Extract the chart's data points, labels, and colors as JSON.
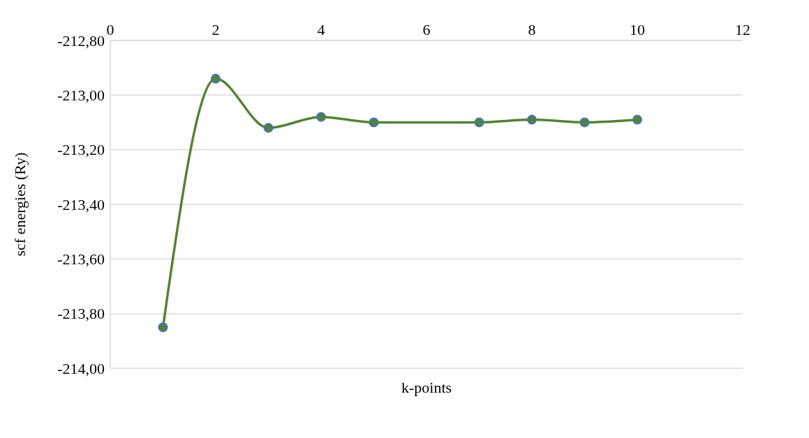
{
  "chart_data": {
    "type": "line",
    "xlabel": "k-points",
    "ylabel": "scf energies (Ry)",
    "x": [
      1,
      2,
      3,
      4,
      5,
      7,
      8,
      9,
      10
    ],
    "series": [
      {
        "color": "#548235",
        "values": [
          -213.85,
          -212.94,
          -213.12,
          -213.08,
          -213.1,
          -213.1,
          -213.09,
          -213.1,
          -213.09
        ]
      }
    ],
    "xlim": [
      0,
      12
    ],
    "xticks": [
      0,
      2,
      4,
      6,
      8,
      10,
      12
    ],
    "ylim": [
      -214,
      -212.8
    ],
    "yticks": [
      {
        "value": -214,
        "label": "-214,00"
      },
      {
        "value": -213.8,
        "label": "-213,80"
      },
      {
        "value": -213.6,
        "label": "-213,60"
      },
      {
        "value": -213.4,
        "label": "-213,40"
      },
      {
        "value": -213.2,
        "label": "-213,20"
      },
      {
        "value": -213,
        "label": "-213,00"
      },
      {
        "value": -212.8,
        "label": "-212,80"
      }
    ],
    "grid": "y",
    "marker": "circle",
    "line_style": "solid"
  }
}
